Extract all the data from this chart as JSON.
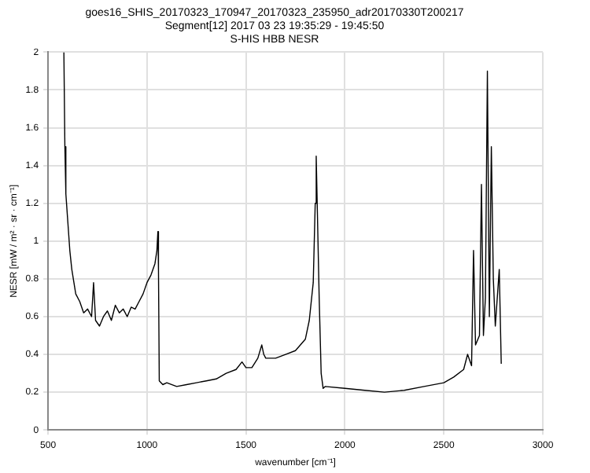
{
  "chart_data": {
    "type": "line",
    "title": "goes16_SHIS_20170323_170947_20170323_235950_adr20170330T200217\nSegment[12] 2017 03 23 19:35:29 - 19:45:50\nS-HIS HBB NESR",
    "xlabel": "wavenumber [cm⁻¹]",
    "ylabel": "NESR [mW / m² · sr · cm⁻¹]",
    "xlim": [
      500,
      3000
    ],
    "xticks": [
      500,
      1000,
      1500,
      2000,
      2500,
      3000
    ],
    "ylim": [
      0,
      2
    ],
    "yticks": [
      0,
      0.2,
      0.4,
      0.6,
      0.8,
      1,
      1.2,
      1.4,
      1.6,
      1.8,
      2
    ],
    "grid": true,
    "marker": "none",
    "line_style": "solid",
    "series": [
      {
        "color": "#000000",
        "x": [
          580,
          585,
          590,
          600,
          610,
          620,
          640,
          660,
          680,
          700,
          720,
          730,
          740,
          760,
          780,
          800,
          820,
          840,
          860,
          880,
          900,
          920,
          940,
          960,
          980,
          1000,
          1020,
          1040,
          1050,
          1055,
          1058,
          1062,
          1080,
          1100,
          1150,
          1200,
          1250,
          1300,
          1350,
          1400,
          1450,
          1480,
          1500,
          1530,
          1560,
          1580,
          1590,
          1600,
          1650,
          1700,
          1750,
          1800,
          1820,
          1840,
          1850,
          1855,
          1860,
          1870,
          1880,
          1890,
          1900,
          2000,
          2100,
          2200,
          2300,
          2400,
          2500,
          2550,
          2600,
          2620,
          2640,
          2650,
          2660,
          2680,
          2690,
          2700,
          2710,
          2720,
          2730,
          2740,
          2750,
          2760,
          2780,
          2790
        ],
        "values": [
          2.0,
          1.5,
          1.25,
          1.1,
          0.95,
          0.85,
          0.72,
          0.68,
          0.62,
          0.64,
          0.6,
          0.78,
          0.58,
          0.55,
          0.6,
          0.63,
          0.58,
          0.66,
          0.62,
          0.64,
          0.6,
          0.65,
          0.64,
          0.68,
          0.72,
          0.78,
          0.82,
          0.88,
          0.95,
          1.05,
          0.85,
          0.26,
          0.24,
          0.25,
          0.23,
          0.24,
          0.25,
          0.26,
          0.27,
          0.3,
          0.32,
          0.36,
          0.33,
          0.33,
          0.38,
          0.45,
          0.4,
          0.38,
          0.38,
          0.4,
          0.42,
          0.48,
          0.58,
          0.78,
          1.2,
          1.45,
          1.2,
          0.7,
          0.3,
          0.22,
          0.23,
          0.22,
          0.21,
          0.2,
          0.21,
          0.23,
          0.25,
          0.28,
          0.32,
          0.4,
          0.34,
          0.95,
          0.45,
          0.5,
          1.3,
          0.5,
          0.7,
          1.9,
          0.6,
          1.5,
          0.8,
          0.55,
          0.85,
          0.35
        ]
      }
    ]
  }
}
